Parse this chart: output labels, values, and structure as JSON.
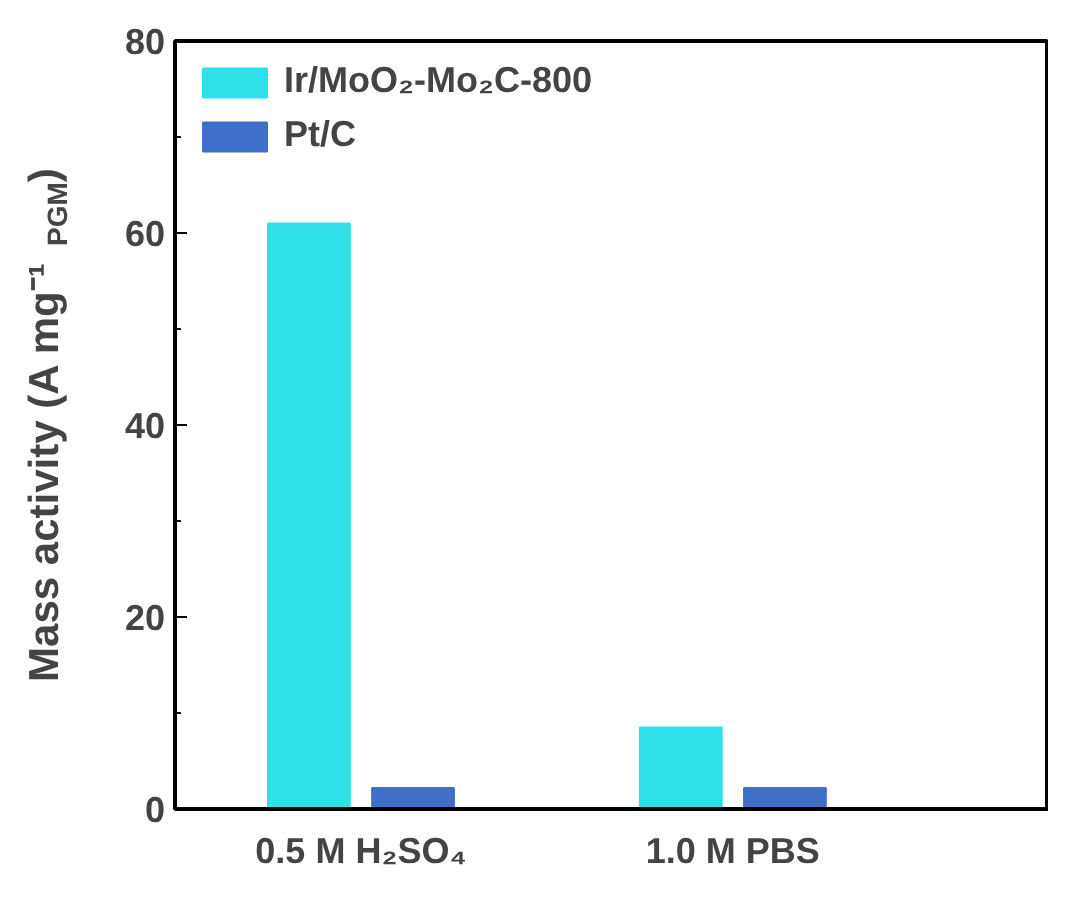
{
  "chart_data": {
    "type": "bar",
    "ylabel": "Mass activity (A mg⁻¹$_{PGM}$)",
    "categories": [
      "0.5 M H₂SO₄",
      "1.0 M PBS"
    ],
    "series": [
      {
        "name": "Ir/MoO₂-Mo₂C-800",
        "color": "#2ee0e8",
        "values": [
          61,
          8.5
        ]
      },
      {
        "name": "Pt/C",
        "color": "#3f6fc8",
        "values": [
          2.2,
          2.2
        ]
      }
    ],
    "ylim": [
      0,
      80
    ],
    "yticks": [
      0,
      20,
      40,
      60,
      80
    ],
    "grid": false,
    "legend": "top left"
  }
}
